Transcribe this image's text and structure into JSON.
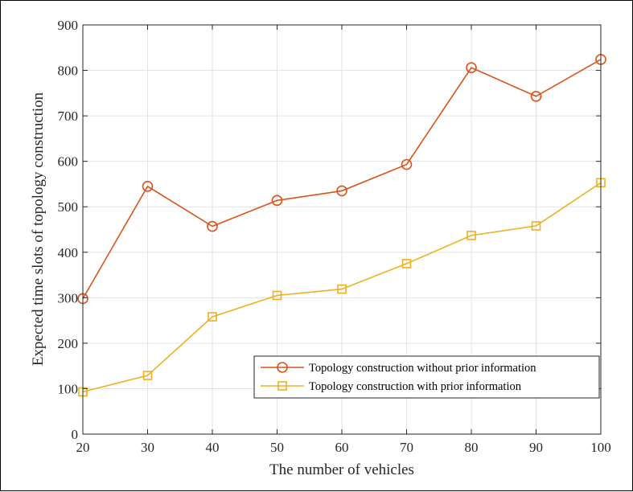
{
  "chart_data": {
    "type": "line",
    "x": [
      20,
      30,
      40,
      50,
      60,
      70,
      80,
      90,
      100
    ],
    "series": [
      {
        "name": "Topology construction without prior information",
        "values": [
          298,
          545,
          457,
          514,
          535,
          593,
          806,
          743,
          824
        ],
        "color": "#d95319",
        "marker": "circle"
      },
      {
        "name": "Topology construction with prior information",
        "values": [
          93,
          129,
          258,
          305,
          319,
          375,
          437,
          458,
          553
        ],
        "color": "#edb120",
        "marker": "square"
      }
    ],
    "xlabel": "The number of vehicles",
    "ylabel": "Expected time slots of topology construction",
    "xlim": [
      20,
      100
    ],
    "ylim": [
      0,
      900
    ],
    "xticks": [
      20,
      30,
      40,
      50,
      60,
      70,
      80,
      90,
      100
    ],
    "yticks": [
      0,
      100,
      200,
      300,
      400,
      500,
      600,
      700,
      800,
      900
    ],
    "grid": true,
    "legend_position": "bottom-right"
  }
}
